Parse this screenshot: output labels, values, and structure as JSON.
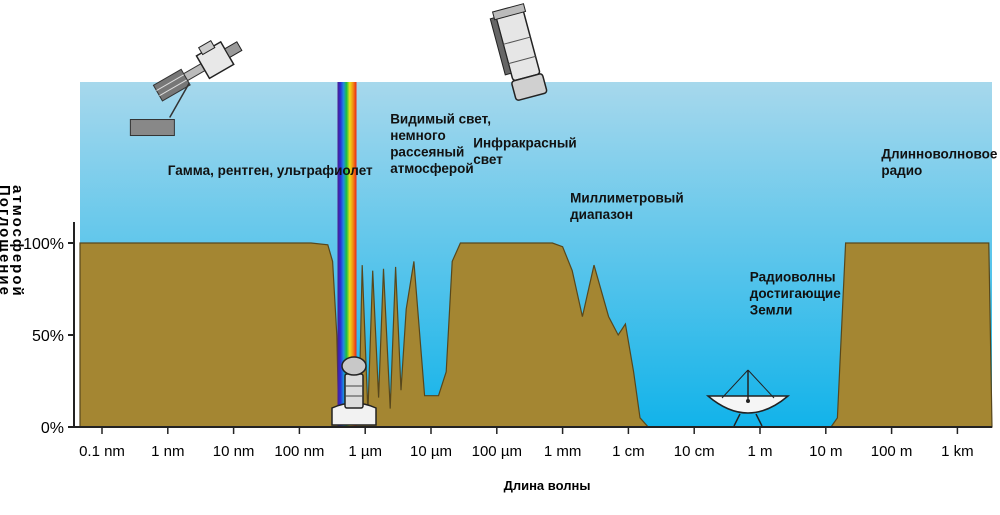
{
  "chart_data": {
    "type": "area",
    "title": "",
    "xlabel": "Длина волны",
    "ylabel": [
      "Поглощение",
      "атмосферой"
    ],
    "y_ticks": [
      "100%",
      "50%",
      "0%"
    ],
    "x_ticks": [
      "0.1 nm",
      "1 nm",
      "10 nm",
      "100 nm",
      "1 µm",
      "10 µm",
      "100 µm",
      "1 mm",
      "1 cm",
      "10 cm",
      "1 m",
      "10 m",
      "100 m",
      "1 km"
    ],
    "x_scale": "log",
    "x_unit_note": "wavelength in metres",
    "ylim": [
      0,
      100
    ],
    "series": [
      {
        "x": [
          1e-11,
          1e-10,
          1e-09,
          1e-08,
          1.5e-07,
          2.7e-07,
          3.2e-07,
          3.7e-07,
          4e-07,
          7e-07,
          8e-07,
          9e-07,
          1.1e-06,
          1.3e-06,
          1.6e-06,
          1.9e-06,
          2.4e-06,
          2.9e-06,
          3.5e-06,
          4.2e-06,
          5.5e-06,
          8e-06,
          1.3e-05,
          1.7e-05,
          2.1e-05,
          2.8e-05,
          3.5e-05,
          5e-05,
          0.0001,
          0.0003,
          0.0007,
          0.001,
          0.0014,
          0.002,
          0.003,
          0.005,
          0.007,
          0.009,
          0.012,
          0.015,
          0.02,
          0.025,
          0.05,
          12.0,
          15.0,
          20.0,
          40.0,
          100.0,
          1000.0,
          3000.0
        ],
        "values": [
          100,
          100,
          100,
          100,
          100,
          99,
          90,
          50,
          0,
          0,
          5,
          88,
          8,
          85,
          16,
          86,
          10,
          87,
          20,
          64,
          90,
          17,
          17,
          30,
          90,
          100,
          100,
          100,
          100,
          100,
          100,
          98,
          85,
          60,
          88,
          60,
          50,
          56,
          30,
          5,
          0,
          0,
          0,
          0,
          5,
          100,
          100,
          100,
          100,
          100
        ]
      }
    ],
    "visible_band": [
      3.8e-07,
      7.4e-07
    ],
    "annotations": [
      {
        "text": "Гамма, рентген, ультрафиолет",
        "at": [
          1e-09,
          137
        ]
      },
      {
        "text": "Видимый свет,\nнемного\nрассеяный\nатмосферой",
        "at": [
          2.4e-06,
          165
        ]
      },
      {
        "text": "Инфракрасный\nсвет",
        "at": [
          4.4e-05,
          152
        ]
      },
      {
        "text": "Миллиметровый\nдиапазон",
        "at": [
          0.0013,
          122
        ]
      },
      {
        "text": "Радиоволны\nдостигающие\nЗемли",
        "at": [
          0.7,
          79
        ]
      },
      {
        "text": "Длинноволновое\nрадио",
        "at": [
          70,
          146
        ]
      }
    ],
    "icons": [
      "satellite-icon",
      "space-telescope-icon",
      "ground-telescope-icon",
      "radio-dish-icon"
    ],
    "colors": {
      "sky_top": "#a7d8ec",
      "sky_bottom": "#12b3ea",
      "absorption": "#a48632",
      "absorption_edge": "#57471c",
      "axis": "#222222"
    }
  }
}
